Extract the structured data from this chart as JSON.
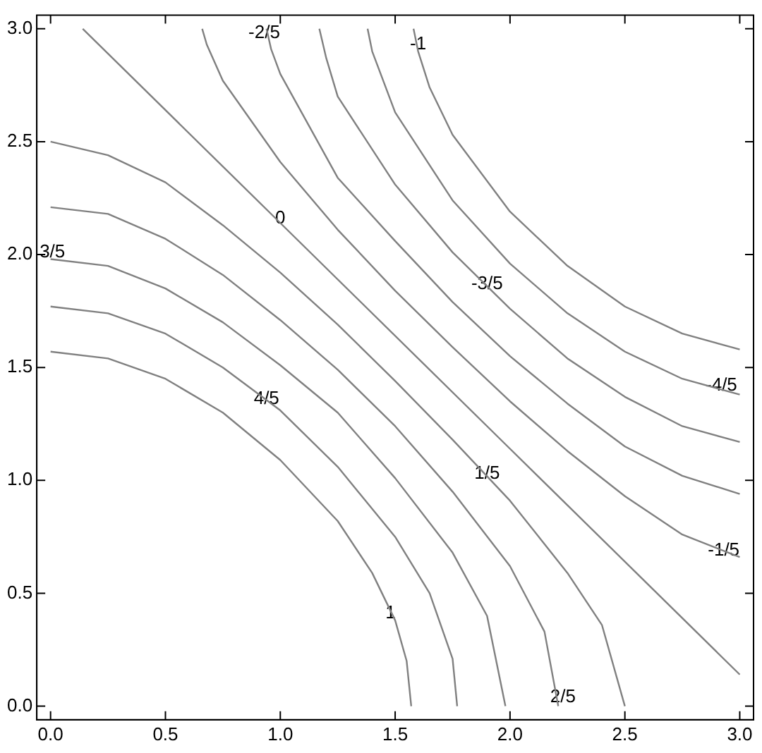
{
  "chart_data": {
    "type": "line",
    "grid": false,
    "legend": false,
    "marker": "none",
    "line_style": "solid",
    "xlim": [
      -0.06,
      3.06
    ],
    "ylim": [
      -0.06,
      3.06
    ],
    "xticks": [
      {
        "value": 0,
        "label": "0.0"
      },
      {
        "value": 0.5,
        "label": "0.5"
      },
      {
        "value": 1,
        "label": "1.0"
      },
      {
        "value": 1.5,
        "label": "1.5"
      },
      {
        "value": 2,
        "label": "2.0"
      },
      {
        "value": 2.5,
        "label": "2.5"
      },
      {
        "value": 3,
        "label": "3.0"
      }
    ],
    "yticks": [
      {
        "value": 0,
        "label": "0.0"
      },
      {
        "value": 0.5,
        "label": "0.5"
      },
      {
        "value": 1,
        "label": "1.0"
      },
      {
        "value": 1.5,
        "label": "1.5"
      },
      {
        "value": 2,
        "label": "2.0"
      },
      {
        "value": 2.5,
        "label": "2.5"
      },
      {
        "value": 3,
        "label": "3.0"
      }
    ],
    "series": [
      {
        "color": "#808080",
        "x": [
          0,
          0.25,
          0.5,
          0.75,
          1.0,
          1.25,
          1.4,
          1.5,
          1.55,
          1.57
        ],
        "values": [
          1.57,
          1.54,
          1.45,
          1.3,
          1.09,
          0.82,
          0.59,
          0.38,
          0.2,
          0
        ]
      },
      {
        "color": "#808080",
        "x": [
          0,
          0.25,
          0.5,
          0.75,
          1.0,
          1.25,
          1.5,
          1.65,
          1.75,
          1.77
        ],
        "values": [
          1.77,
          1.74,
          1.65,
          1.5,
          1.31,
          1.06,
          0.75,
          0.5,
          0.21,
          0
        ]
      },
      {
        "color": "#808080",
        "x": [
          0,
          0.25,
          0.5,
          0.75,
          1.0,
          1.25,
          1.5,
          1.75,
          1.9,
          1.98
        ],
        "values": [
          1.98,
          1.95,
          1.85,
          1.7,
          1.51,
          1.3,
          1.01,
          0.68,
          0.4,
          0
        ]
      },
      {
        "color": "#808080",
        "x": [
          0,
          0.25,
          0.5,
          0.75,
          1.0,
          1.25,
          1.5,
          1.75,
          2.0,
          2.15,
          2.21
        ],
        "values": [
          2.21,
          2.18,
          2.07,
          1.91,
          1.71,
          1.49,
          1.24,
          0.95,
          0.62,
          0.33,
          0
        ]
      },
      {
        "color": "#808080",
        "x": [
          0,
          0.25,
          0.5,
          0.75,
          1.0,
          1.25,
          1.5,
          1.75,
          2.0,
          2.25,
          2.4,
          2.5
        ],
        "values": [
          2.5,
          2.44,
          2.32,
          2.13,
          1.92,
          1.69,
          1.44,
          1.18,
          0.91,
          0.59,
          0.36,
          0
        ]
      },
      {
        "color": "#808080",
        "x": [
          0.14,
          1.0,
          2.0,
          3.0
        ],
        "values": [
          3.0,
          2.14,
          1.14,
          0.14
        ]
      },
      {
        "color": "#808080",
        "x": [
          0.66,
          0.68,
          0.75,
          1.0,
          1.25,
          1.5,
          1.75,
          2.0,
          2.25,
          2.5,
          2.75,
          3.0
        ],
        "values": [
          3.0,
          2.93,
          2.77,
          2.41,
          2.11,
          1.84,
          1.59,
          1.35,
          1.13,
          0.93,
          0.76,
          0.66
        ]
      },
      {
        "color": "#808080",
        "x": [
          0.94,
          0.96,
          1.0,
          1.25,
          1.5,
          1.75,
          2.0,
          2.25,
          2.5,
          2.75,
          3.0
        ],
        "values": [
          3.0,
          2.91,
          2.8,
          2.34,
          2.06,
          1.79,
          1.55,
          1.34,
          1.15,
          1.02,
          0.94
        ]
      },
      {
        "color": "#808080",
        "x": [
          1.17,
          1.2,
          1.25,
          1.5,
          1.75,
          2.0,
          2.25,
          2.5,
          2.75,
          3.0
        ],
        "values": [
          3.0,
          2.87,
          2.7,
          2.31,
          2.01,
          1.76,
          1.54,
          1.37,
          1.24,
          1.17
        ]
      },
      {
        "color": "#808080",
        "x": [
          1.38,
          1.4,
          1.5,
          1.75,
          2.0,
          2.25,
          2.5,
          2.75,
          3.0
        ],
        "values": [
          3.0,
          2.9,
          2.63,
          2.24,
          1.96,
          1.74,
          1.57,
          1.45,
          1.38
        ]
      },
      {
        "color": "#808080",
        "x": [
          1.58,
          1.6,
          1.65,
          1.75,
          2.0,
          2.25,
          2.5,
          2.75,
          3.0
        ],
        "values": [
          3.0,
          2.9,
          2.74,
          2.53,
          2.19,
          1.95,
          1.77,
          1.65,
          1.58
        ]
      }
    ],
    "annotations": [
      {
        "text": "1",
        "x": 1.48,
        "y": 0.41
      },
      {
        "text": "4/5",
        "x": 0.94,
        "y": 1.36
      },
      {
        "text": "3/5",
        "x": 0.0,
        "y": 2.01
      },
      {
        "text": "2/5",
        "x": 2.23,
        "y": 0.04
      },
      {
        "text": "1/5",
        "x": 1.9,
        "y": 1.03
      },
      {
        "text": "0",
        "x": 1.0,
        "y": 2.16
      },
      {
        "text": "-1/5",
        "x": 2.93,
        "y": 0.69
      },
      {
        "text": "-2/5",
        "x": 0.93,
        "y": 2.98
      },
      {
        "text": "-3/5",
        "x": 1.9,
        "y": 1.87
      },
      {
        "text": "-4/5",
        "x": 2.92,
        "y": 1.42
      },
      {
        "text": "-1",
        "x": 1.6,
        "y": 2.93
      }
    ]
  }
}
